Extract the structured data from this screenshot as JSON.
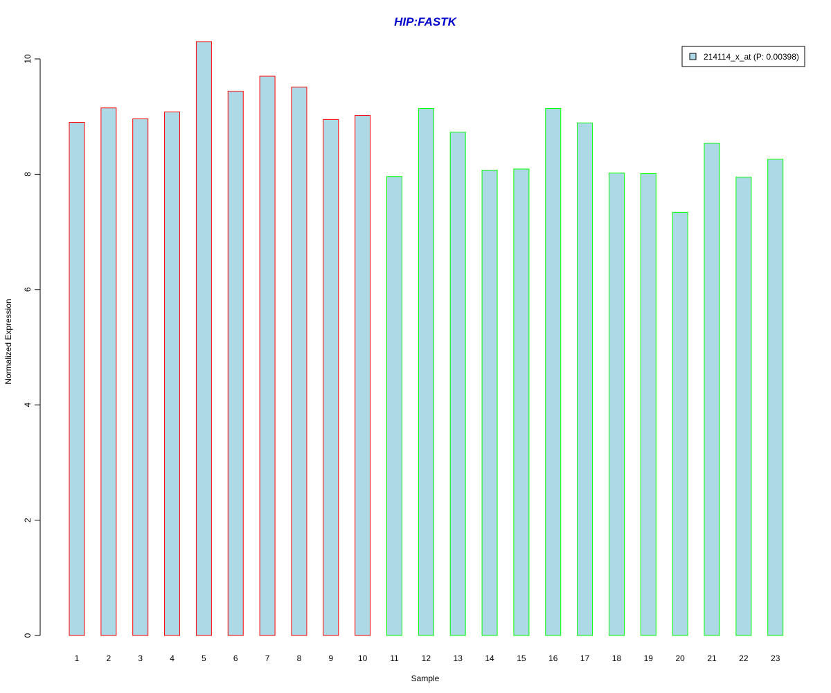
{
  "chart_data": {
    "type": "bar",
    "title": "HIP:FASTK",
    "xlabel": "Sample",
    "ylabel": "Normalized Expression",
    "ylim": [
      0,
      10.4
    ],
    "yticks": [
      0,
      2,
      4,
      6,
      8,
      10
    ],
    "categories": [
      "1",
      "2",
      "3",
      "4",
      "5",
      "6",
      "7",
      "8",
      "9",
      "10",
      "11",
      "12",
      "13",
      "14",
      "15",
      "16",
      "17",
      "18",
      "19",
      "20",
      "21",
      "22",
      "23"
    ],
    "series": [
      {
        "name": "214114_x_at (P: 0.00398)",
        "values": [
          8.9,
          9.15,
          8.96,
          9.08,
          10.3,
          9.44,
          9.7,
          9.51,
          8.95,
          9.02,
          7.96,
          9.14,
          8.73,
          8.07,
          8.09,
          9.14,
          8.89,
          8.02,
          8.01,
          7.34,
          8.54,
          7.95,
          8.26
        ]
      }
    ],
    "groups": [
      "A",
      "A",
      "A",
      "A",
      "A",
      "A",
      "A",
      "A",
      "A",
      "A",
      "B",
      "B",
      "B",
      "B",
      "B",
      "B",
      "B",
      "B",
      "B",
      "B",
      "B",
      "B",
      "B"
    ],
    "colors": {
      "bar_fill": "#add8e6",
      "group_A_border": "#ff0000",
      "group_B_border": "#00ff00",
      "title": "#0000cc",
      "axis": "#000000"
    },
    "legend": {
      "label": "214114_x_at (P: 0.00398)",
      "placement": "top-right"
    },
    "grid": false
  }
}
